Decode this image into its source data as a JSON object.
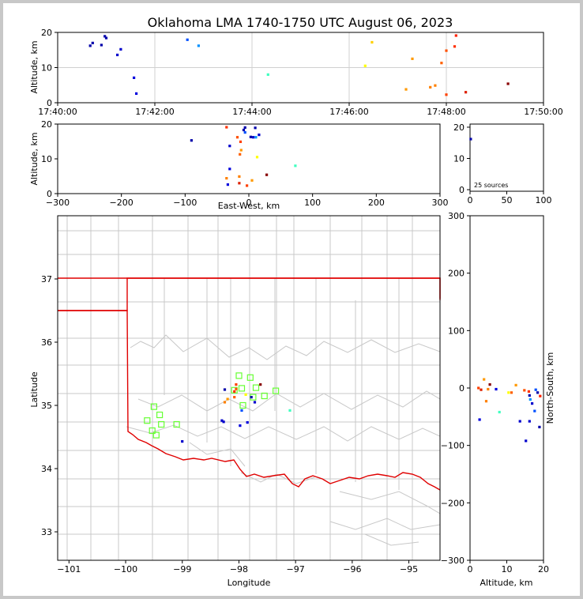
{
  "title": "Oklahoma LMA 1740-1750 UTC August 06, 2023",
  "source_count_label": "25 sources",
  "chart_data": [
    {
      "panel": "altitude-vs-time",
      "type": "scatter",
      "ylabel": "Altitude, km",
      "xticks": [
        "17:40:00",
        "17:42:00",
        "17:44:00",
        "17:46:00",
        "17:48:00",
        "17:50:00"
      ],
      "xlim_minutes": [
        0,
        10
      ],
      "yticks": [
        "0",
        "10",
        "20"
      ],
      "ylim": [
        0,
        20
      ],
      "grid": true,
      "points": [
        {
          "t": 0.67,
          "alt": 16.2,
          "color": "#0000aa"
        },
        {
          "t": 0.72,
          "alt": 17.0,
          "color": "#0000aa"
        },
        {
          "t": 0.9,
          "alt": 16.4,
          "color": "#0000aa"
        },
        {
          "t": 0.97,
          "alt": 18.9,
          "color": "#0000aa"
        },
        {
          "t": 1.0,
          "alt": 18.4,
          "color": "#0000aa"
        },
        {
          "t": 1.23,
          "alt": 13.6,
          "color": "#0000cc"
        },
        {
          "t": 1.3,
          "alt": 15.2,
          "color": "#0000cc"
        },
        {
          "t": 1.57,
          "alt": 7.1,
          "color": "#0000dd"
        },
        {
          "t": 1.62,
          "alt": 2.6,
          "color": "#0000dd"
        },
        {
          "t": 2.67,
          "alt": 17.9,
          "color": "#0050ff"
        },
        {
          "t": 2.9,
          "alt": 16.2,
          "color": "#0090ff"
        },
        {
          "t": 4.33,
          "alt": 8.0,
          "color": "#40ffc0"
        },
        {
          "t": 6.33,
          "alt": 10.5,
          "color": "#ffff00"
        },
        {
          "t": 6.47,
          "alt": 17.2,
          "color": "#ffd000"
        },
        {
          "t": 7.17,
          "alt": 3.8,
          "color": "#ff9900"
        },
        {
          "t": 7.3,
          "alt": 12.5,
          "color": "#ff9900"
        },
        {
          "t": 7.67,
          "alt": 4.4,
          "color": "#ff8000"
        },
        {
          "t": 7.77,
          "alt": 4.9,
          "color": "#ff8000"
        },
        {
          "t": 7.9,
          "alt": 11.3,
          "color": "#ff6000"
        },
        {
          "t": 8.0,
          "alt": 14.8,
          "color": "#ff5000"
        },
        {
          "t": 8.0,
          "alt": 2.3,
          "color": "#ff4000"
        },
        {
          "t": 8.17,
          "alt": 16.0,
          "color": "#ff3000"
        },
        {
          "t": 8.2,
          "alt": 19.1,
          "color": "#ff2000"
        },
        {
          "t": 8.4,
          "alt": 3.0,
          "color": "#dd2000"
        },
        {
          "t": 9.27,
          "alt": 5.4,
          "color": "#880000"
        }
      ]
    },
    {
      "panel": "altitude-vs-east-west",
      "type": "scatter",
      "xlabel": "East-West, km",
      "ylabel": "Altitude, km",
      "xticks": [
        "−300",
        "−200",
        "−100",
        "0",
        "100",
        "200",
        "300"
      ],
      "xlim": [
        -300,
        300
      ],
      "yticks": [
        "0",
        "10",
        "20"
      ],
      "ylim": [
        0,
        20
      ],
      "points": [
        {
          "x": -90,
          "alt": 15.3,
          "color": "#0000aa"
        },
        {
          "x": -35,
          "alt": 19.1,
          "color": "#ff3000"
        },
        {
          "x": -30,
          "alt": 13.7,
          "color": "#0000cc"
        },
        {
          "x": -30,
          "alt": 7.1,
          "color": "#0000dd"
        },
        {
          "x": -35,
          "alt": 4.4,
          "color": "#ff8000"
        },
        {
          "x": -33,
          "alt": 2.6,
          "color": "#0000dd"
        },
        {
          "x": -18,
          "alt": 16.2,
          "color": "#ff5000"
        },
        {
          "x": -14,
          "alt": 11.3,
          "color": "#ff6000"
        },
        {
          "x": -12,
          "alt": 12.5,
          "color": "#ff9900"
        },
        {
          "x": -13,
          "alt": 14.9,
          "color": "#ff4000"
        },
        {
          "x": -15,
          "alt": 4.9,
          "color": "#ff8000"
        },
        {
          "x": -15,
          "alt": 3.0,
          "color": "#dd2000"
        },
        {
          "x": -8,
          "alt": 18.3,
          "color": "#0000aa"
        },
        {
          "x": -6,
          "alt": 19.0,
          "color": "#0000aa"
        },
        {
          "x": -6,
          "alt": 17.6,
          "color": "#0050ff"
        },
        {
          "x": -3,
          "alt": 2.3,
          "color": "#ff4000"
        },
        {
          "x": 3,
          "alt": 16.3,
          "color": "#0000aa"
        },
        {
          "x": 7,
          "alt": 16.2,
          "color": "#0000cc"
        },
        {
          "x": 10,
          "alt": 18.9,
          "color": "#0000aa"
        },
        {
          "x": 11,
          "alt": 16.2,
          "color": "#0090ff"
        },
        {
          "x": 16,
          "alt": 16.9,
          "color": "#0000cc"
        },
        {
          "x": 5,
          "alt": 3.8,
          "color": "#ff9900"
        },
        {
          "x": 13,
          "alt": 10.5,
          "color": "#ffff00"
        },
        {
          "x": 28,
          "alt": 5.4,
          "color": "#880000"
        },
        {
          "x": 73,
          "alt": 8.0,
          "color": "#40ffc0"
        }
      ]
    },
    {
      "panel": "altitude-histogram",
      "type": "bar",
      "xticks": [
        "0",
        "50",
        "100"
      ],
      "xlim": [
        0,
        100
      ],
      "yticks": [
        "0",
        "10",
        "20"
      ],
      "ylim": [
        0,
        20
      ],
      "points": [
        {
          "x": 1,
          "alt": 16.2,
          "color": "#0000aa"
        }
      ]
    },
    {
      "panel": "plan-view-map",
      "type": "scatter",
      "xlabel": "Longitude",
      "ylabel": "Latitude",
      "xticks": [
        "−101",
        "−100",
        "−99",
        "−98",
        "−97",
        "−96",
        "−95"
      ],
      "xlim": [
        -101.2,
        -94.45
      ],
      "yticks": [
        "33",
        "34",
        "35",
        "36",
        "37"
      ],
      "ylim": [
        32.55,
        38.0
      ],
      "stations": [
        {
          "lon": -99.5,
          "lat": 34.98
        },
        {
          "lon": -99.4,
          "lat": 34.85
        },
        {
          "lon": -99.62,
          "lat": 34.76
        },
        {
          "lon": -99.37,
          "lat": 34.7
        },
        {
          "lon": -99.53,
          "lat": 34.6
        },
        {
          "lon": -99.46,
          "lat": 34.53
        },
        {
          "lon": -99.1,
          "lat": 34.7
        },
        {
          "lon": -98.0,
          "lat": 35.47
        },
        {
          "lon": -97.8,
          "lat": 35.44
        },
        {
          "lon": -98.08,
          "lat": 35.24
        },
        {
          "lon": -97.95,
          "lat": 35.27
        },
        {
          "lon": -97.7,
          "lat": 35.28
        },
        {
          "lon": -97.35,
          "lat": 35.23
        },
        {
          "lon": -97.55,
          "lat": 35.15
        },
        {
          "lon": -97.75,
          "lat": 35.13
        },
        {
          "lon": -97.93,
          "lat": 35.0
        }
      ],
      "points": [
        {
          "lon": -98.25,
          "lat": 35.25,
          "color": "#0000aa"
        },
        {
          "lon": -98.3,
          "lat": 34.76,
          "color": "#0000cc"
        },
        {
          "lon": -98.27,
          "lat": 34.74,
          "color": "#0000cc"
        },
        {
          "lon": -99.0,
          "lat": 34.43,
          "color": "#0000cc"
        },
        {
          "lon": -98.08,
          "lat": 35.22,
          "color": "#ff3000"
        },
        {
          "lon": -98.05,
          "lat": 35.26,
          "color": "#ff5000"
        },
        {
          "lon": -98.08,
          "lat": 35.13,
          "color": "#ff6000"
        },
        {
          "lon": -98.2,
          "lat": 35.1,
          "color": "#ff9900"
        },
        {
          "lon": -98.25,
          "lat": 35.05,
          "color": "#ff8000"
        },
        {
          "lon": -98.05,
          "lat": 35.33,
          "color": "#ff4000"
        },
        {
          "lon": -97.95,
          "lat": 34.92,
          "color": "#0050ff"
        },
        {
          "lon": -97.98,
          "lat": 34.68,
          "color": "#0000dd"
        },
        {
          "lon": -97.85,
          "lat": 34.73,
          "color": "#0000dd"
        },
        {
          "lon": -97.72,
          "lat": 35.05,
          "color": "#0000cc"
        },
        {
          "lon": -97.78,
          "lat": 35.13,
          "color": "#0000aa"
        },
        {
          "lon": -97.62,
          "lat": 35.33,
          "color": "#880000"
        },
        {
          "lon": -97.1,
          "lat": 34.92,
          "color": "#40ffc0"
        },
        {
          "lon": -97.88,
          "lat": 35.17,
          "color": "#ffff00"
        }
      ]
    },
    {
      "panel": "north-south-vs-altitude",
      "type": "scatter",
      "xlabel": "Altitude, km",
      "ylabel": "North-South, km",
      "xticks": [
        "0",
        "10",
        "20"
      ],
      "xlim": [
        0,
        20
      ],
      "yticks": [
        "−300",
        "−200",
        "−100",
        "0",
        "100",
        "200",
        "300"
      ],
      "ylim": [
        -300,
        300
      ],
      "points": [
        {
          "alt": 2.3,
          "y": 0,
          "color": "#ff4000"
        },
        {
          "alt": 2.6,
          "y": -55,
          "color": "#0000dd"
        },
        {
          "alt": 3.0,
          "y": -3,
          "color": "#dd2000"
        },
        {
          "alt": 3.8,
          "y": 15,
          "color": "#ff9900"
        },
        {
          "alt": 4.4,
          "y": -23,
          "color": "#ff8000"
        },
        {
          "alt": 4.9,
          "y": -2,
          "color": "#ff8000"
        },
        {
          "alt": 5.4,
          "y": 6,
          "color": "#880000"
        },
        {
          "alt": 7.1,
          "y": -2,
          "color": "#0000dd"
        },
        {
          "alt": 8.0,
          "y": -42,
          "color": "#40ffc0"
        },
        {
          "alt": 10.5,
          "y": -8,
          "color": "#ffff00"
        },
        {
          "alt": 11.3,
          "y": -8,
          "color": "#ff6000"
        },
        {
          "alt": 12.5,
          "y": 5,
          "color": "#ff9900"
        },
        {
          "alt": 13.6,
          "y": -58,
          "color": "#0000cc"
        },
        {
          "alt": 14.8,
          "y": -4,
          "color": "#ff5000"
        },
        {
          "alt": 15.2,
          "y": -92,
          "color": "#0000cc"
        },
        {
          "alt": 16.0,
          "y": -6,
          "color": "#ff3000"
        },
        {
          "alt": 16.2,
          "y": -13,
          "color": "#0000aa"
        },
        {
          "alt": 16.2,
          "y": -58,
          "color": "#0000cc"
        },
        {
          "alt": 16.4,
          "y": -20,
          "color": "#0090ff"
        },
        {
          "alt": 16.9,
          "y": -27,
          "color": "#0000cc"
        },
        {
          "alt": 17.6,
          "y": -40,
          "color": "#0050ff"
        },
        {
          "alt": 17.9,
          "y": -3,
          "color": "#0050ff"
        },
        {
          "alt": 18.4,
          "y": -8,
          "color": "#0000aa"
        },
        {
          "alt": 18.9,
          "y": -68,
          "color": "#0000aa"
        },
        {
          "alt": 19.1,
          "y": -14,
          "color": "#ff2000"
        }
      ]
    }
  ]
}
